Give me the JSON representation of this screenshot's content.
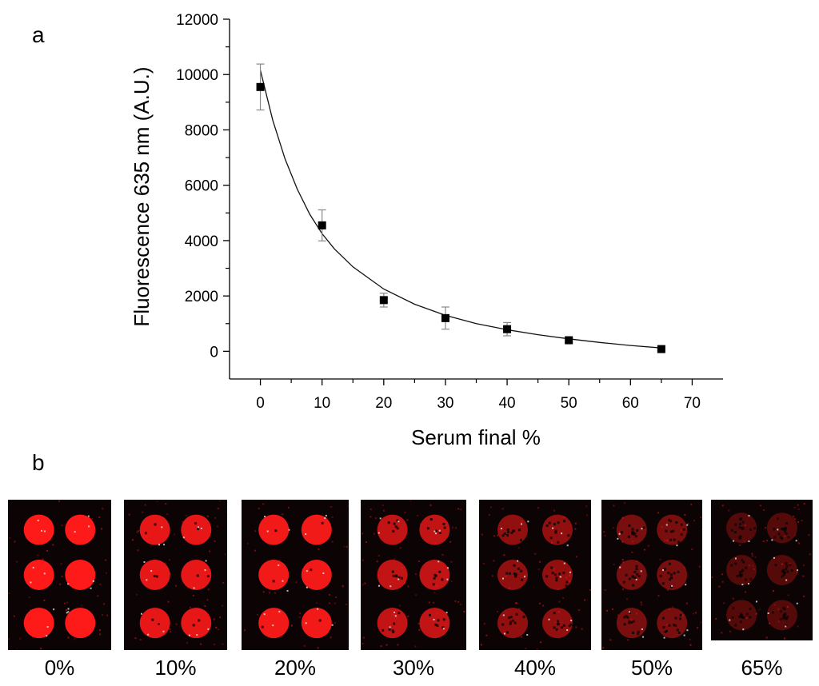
{
  "panel_a_label": "a",
  "panel_b_label": "b",
  "chart_data": {
    "type": "scatter",
    "xlabel": "Serum final %",
    "ylabel": "Fluorescence 635 nm (A.U.)",
    "xlim": [
      -5,
      75
    ],
    "ylim": [
      -1000,
      12000
    ],
    "xticks": [
      0,
      10,
      20,
      30,
      40,
      50,
      60,
      70
    ],
    "yticks": [
      0,
      2000,
      4000,
      6000,
      8000,
      10000,
      12000
    ],
    "grid": false,
    "series": [
      {
        "x": [
          0,
          10,
          20,
          30,
          40,
          50,
          65
        ],
        "y": [
          9550,
          4550,
          1850,
          1200,
          800,
          400,
          80
        ],
        "error": [
          830,
          560,
          250,
          400,
          240,
          80,
          60
        ]
      }
    ],
    "fit": {
      "model": "exponential decay",
      "x": [
        0,
        2,
        4,
        6,
        8,
        10,
        12,
        15,
        20,
        25,
        30,
        35,
        40,
        45,
        50,
        55,
        60,
        65
      ],
      "y": [
        10150,
        8350,
        6950,
        5850,
        4950,
        4250,
        3700,
        3050,
        2250,
        1700,
        1300,
        1000,
        780,
        600,
        450,
        320,
        210,
        120
      ]
    }
  },
  "array_images": [
    {
      "label": "0%",
      "intensity": 1.0
    },
    {
      "label": "10%",
      "intensity": 0.9
    },
    {
      "label": "20%",
      "intensity": 0.95
    },
    {
      "label": "30%",
      "intensity": 0.75
    },
    {
      "label": "40%",
      "intensity": 0.55
    },
    {
      "label": "50%",
      "intensity": 0.45
    },
    {
      "label": "65%",
      "intensity": 0.3
    }
  ],
  "colors": {
    "spot": "#ff1a1a",
    "background": "#0c0404",
    "marker": "#000000",
    "errorbar": "#888888"
  }
}
